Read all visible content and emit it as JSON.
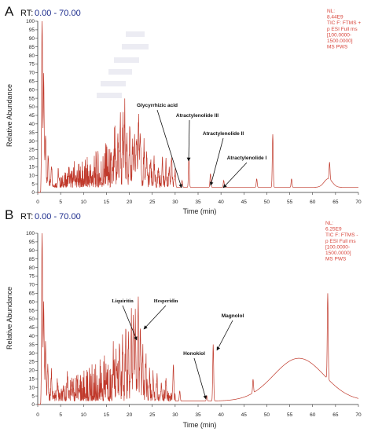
{
  "chart_data": [
    {
      "type": "line",
      "panel": "A",
      "rt_label": "RT:",
      "rt_range": "0.00 - 70.00",
      "nl_info": [
        "NL:",
        "8.44E9",
        "TIC F: FTMS +",
        "p ESI Full ms",
        "[100.0000-",
        "1500.0000]",
        "MS PWS"
      ],
      "xlabel": "Time (min)",
      "ylabel": "Relative Abundance",
      "xlim": [
        0,
        70
      ],
      "ylim": [
        0,
        100
      ],
      "xticks": [
        0,
        5,
        10,
        15,
        20,
        25,
        30,
        35,
        40,
        45,
        50,
        55,
        60,
        65,
        70
      ],
      "yticks": [
        0,
        5,
        10,
        15,
        20,
        25,
        30,
        35,
        40,
        45,
        50,
        55,
        60,
        65,
        70,
        75,
        80,
        85,
        90,
        95,
        100
      ],
      "color": "#c0392b",
      "baseline": 3,
      "noise": [
        [
          1.2,
          7
        ],
        [
          2,
          6
        ],
        [
          4,
          5
        ],
        [
          15,
          26
        ],
        [
          20,
          18
        ],
        [
          26,
          8
        ],
        [
          30,
          5
        ]
      ],
      "peaks": [
        [
          0.95,
          100
        ],
        [
          1.3,
          65
        ],
        [
          1.7,
          30
        ],
        [
          2.3,
          17
        ],
        [
          3,
          12
        ],
        [
          4.5,
          7
        ],
        [
          6.8,
          6
        ],
        [
          8,
          5
        ],
        [
          15,
          6
        ],
        [
          16.8,
          16
        ],
        [
          17.5,
          22
        ],
        [
          18,
          33
        ],
        [
          18.6,
          28
        ],
        [
          19,
          35
        ],
        [
          19.5,
          22
        ],
        [
          20.1,
          30
        ],
        [
          20.7,
          18
        ],
        [
          21.1,
          26
        ],
        [
          21.6,
          28
        ],
        [
          22,
          35
        ],
        [
          22.4,
          27
        ],
        [
          23.2,
          18
        ],
        [
          23.8,
          14
        ],
        [
          24.6,
          12
        ],
        [
          25.4,
          10
        ],
        [
          26.3,
          9
        ],
        [
          27.2,
          15
        ],
        [
          28,
          11
        ],
        [
          28.7,
          10
        ],
        [
          29.2,
          17
        ],
        [
          30,
          9
        ],
        [
          31.5,
          4
        ],
        [
          33,
          17
        ],
        [
          37.7,
          8
        ],
        [
          40.6,
          4
        ],
        [
          47.8,
          5
        ],
        [
          51.3,
          31
        ],
        [
          55.4,
          5
        ],
        [
          63.7,
          10
        ]
      ],
      "hump": [
        63.4,
        5,
        0.9
      ],
      "annotations": [
        {
          "label": "Glycyrrhizic acid",
          "x": 31.5,
          "y": 4
        },
        {
          "label": "Atractylenolide III",
          "x": 33,
          "y": 17
        },
        {
          "label": "Atractylenolide II",
          "x": 37.7,
          "y": 8
        },
        {
          "label": "Atractylenolide I",
          "x": 40.6,
          "y": 4
        }
      ]
    },
    {
      "type": "line",
      "panel": "B",
      "rt_label": "RT:",
      "rt_range": "0.00 - 70.00",
      "nl_info": [
        "NL:",
        "6.25E9",
        "TIC F: FTMS -",
        "p ESI Full ms",
        "[100.0000-",
        "1500.0000]",
        "MS PWS"
      ],
      "xlabel": "Time (min)",
      "ylabel": "Relative Abundance",
      "xlim": [
        0,
        70
      ],
      "ylim": [
        0,
        100
      ],
      "xticks": [
        0,
        5,
        10,
        15,
        20,
        25,
        30,
        35,
        40,
        45,
        50,
        55,
        60,
        65,
        70
      ],
      "yticks": [
        0,
        5,
        10,
        15,
        20,
        25,
        30,
        35,
        40,
        45,
        50,
        55,
        60,
        65,
        70,
        75,
        80,
        85,
        90,
        95,
        100
      ],
      "color": "#c0392b",
      "baseline": 2,
      "noise": [
        [
          1.2,
          10
        ],
        [
          2,
          8
        ],
        [
          4,
          6
        ],
        [
          15,
          28
        ],
        [
          20,
          20
        ],
        [
          26,
          8
        ],
        [
          30,
          5
        ]
      ],
      "peaks": [
        [
          0.95,
          100
        ],
        [
          1.3,
          55
        ],
        [
          1.7,
          30
        ],
        [
          2.2,
          20
        ],
        [
          3,
          14
        ],
        [
          4.3,
          10
        ],
        [
          6.5,
          12
        ],
        [
          7.5,
          9
        ],
        [
          9,
          6
        ],
        [
          15,
          8
        ],
        [
          16.5,
          17
        ],
        [
          17.2,
          20
        ],
        [
          17.9,
          25
        ],
        [
          18.5,
          22
        ],
        [
          19.2,
          28
        ],
        [
          19.8,
          24
        ],
        [
          20.4,
          40
        ],
        [
          20.9,
          42
        ],
        [
          21.3,
          44
        ],
        [
          21.9,
          53
        ],
        [
          22.4,
          40
        ],
        [
          22.9,
          25
        ],
        [
          23.6,
          18
        ],
        [
          24.4,
          12
        ],
        [
          25.2,
          10
        ],
        [
          26,
          12
        ],
        [
          27,
          9
        ],
        [
          28,
          10
        ],
        [
          29.6,
          20
        ],
        [
          31,
          6
        ],
        [
          36.9,
          3
        ],
        [
          38.3,
          33
        ],
        [
          47,
          8
        ],
        [
          63.3,
          50
        ]
      ],
      "hump": [
        57,
        25,
        5.5
      ],
      "annotations": [
        {
          "label": "Liquiritin",
          "x": 21.3,
          "y": 44
        },
        {
          "label": "Hesperidin",
          "x": 21.9,
          "y": 53
        },
        {
          "label": "Honokiol",
          "x": 36.9,
          "y": 3
        },
        {
          "label": "Magnolol",
          "x": 38.3,
          "y": 33
        }
      ]
    }
  ]
}
